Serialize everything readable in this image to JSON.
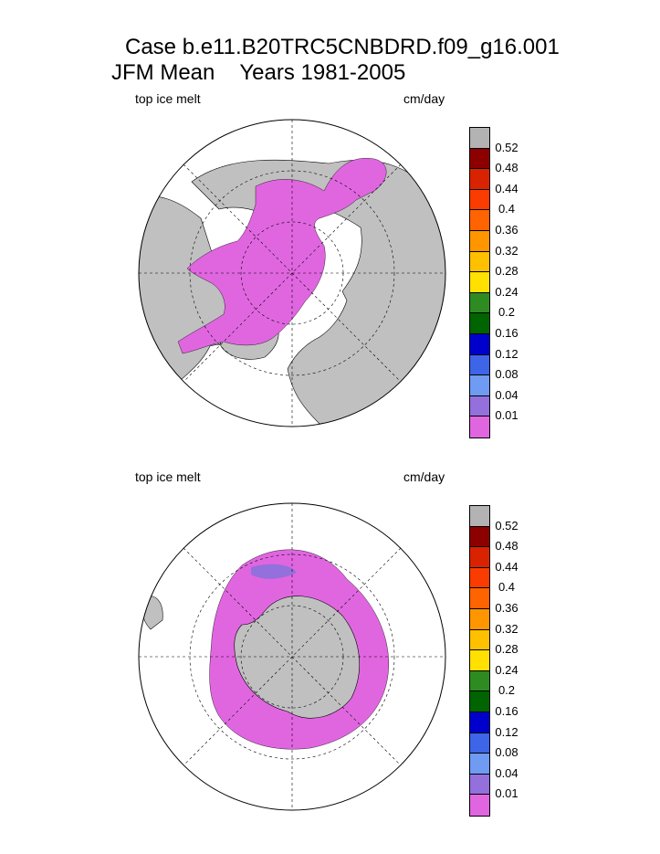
{
  "header": {
    "title_line1": "Case b.e11.B20TRC5CNBDRD.f09_g16.001",
    "title_season": "JFM Mean",
    "title_years": "Years 1981-2005"
  },
  "panels": [
    {
      "variable": "top ice melt",
      "units": "cm/day",
      "hemisphere": "north"
    },
    {
      "variable": "top ice melt",
      "units": "cm/day",
      "hemisphere": "south"
    }
  ],
  "colorbar": {
    "labels": [
      "0.52",
      "0.48",
      "0.44",
      "0.4",
      "0.36",
      "0.32",
      "0.28",
      "0.24",
      "0.2",
      "0.16",
      "0.12",
      "0.08",
      "0.04",
      "0.01"
    ],
    "colors": [
      "#b3b3b3",
      "#8c0000",
      "#d92300",
      "#fa3c00",
      "#ff6400",
      "#ff9600",
      "#ffc000",
      "#ffe000",
      "#2e8b22",
      "#006400",
      "#0000cd",
      "#3e64e8",
      "#6f9bf2",
      "#9370db",
      "#e066e0"
    ]
  }
}
